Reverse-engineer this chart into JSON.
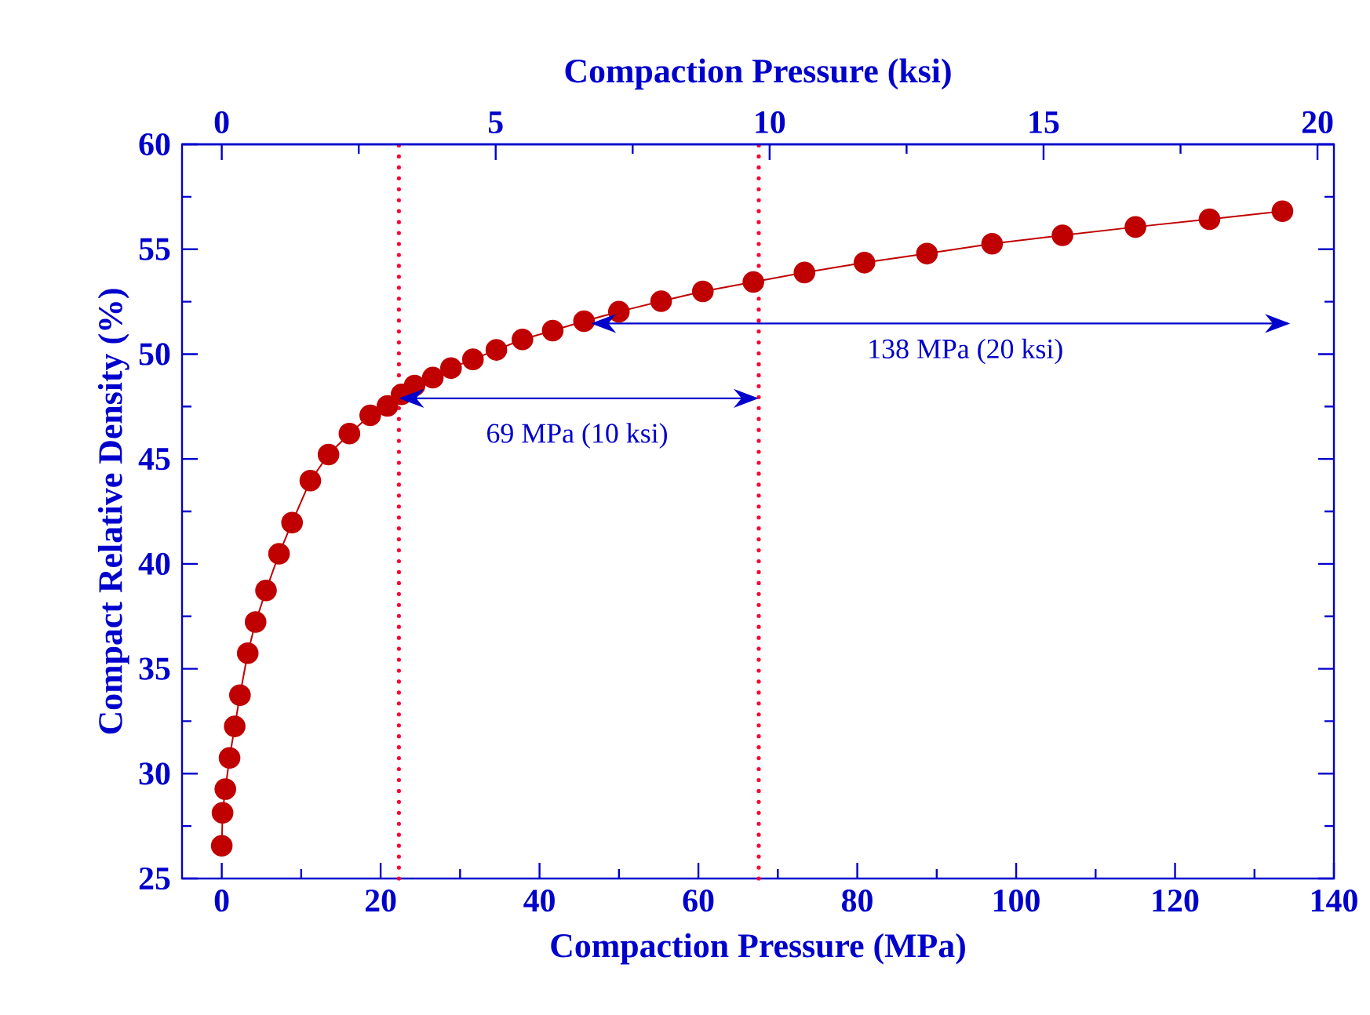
{
  "chart_data": {
    "type": "line",
    "xlabel": "Compaction Pressure (MPa)",
    "x2label": "Compaction Pressure (ksi)",
    "ylabel": "Compact Relative Density (%)",
    "xlim": [
      -5,
      140
    ],
    "xticks": [
      0,
      20,
      40,
      60,
      80,
      100,
      120,
      140
    ],
    "x2lim": [
      -0.725,
      20.3
    ],
    "x2ticks": [
      0,
      5,
      10,
      15,
      20
    ],
    "ylim": [
      25,
      60
    ],
    "yticks": [
      25,
      30,
      35,
      40,
      45,
      50,
      55,
      60
    ],
    "marker": "circle",
    "line_style": "solid",
    "grid": false,
    "series": [
      {
        "color": "#c00000",
        "x": [
          0,
          0.1,
          0.45,
          0.98,
          1.63,
          2.29,
          3.27,
          4.26,
          5.57,
          7.21,
          8.85,
          11.15,
          13.44,
          16.07,
          18.69,
          20.86,
          22.63,
          24.27,
          26.57,
          28.86,
          31.62,
          34.57,
          37.85,
          41.66,
          45.6,
          49.99,
          55.31,
          60.56,
          66.92,
          73.35,
          80.9,
          88.77,
          96.97,
          105.83,
          115.02,
          124.34,
          133.52
        ],
        "values": [
          26.56,
          28.13,
          29.26,
          30.75,
          32.25,
          33.74,
          35.74,
          37.23,
          38.73,
          40.48,
          41.97,
          43.97,
          45.21,
          46.21,
          47.08,
          47.53,
          48.08,
          48.5,
          48.88,
          49.33,
          49.75,
          50.2,
          50.7,
          51.12,
          51.57,
          52.02,
          52.52,
          52.99,
          53.44,
          53.89,
          54.36,
          54.79,
          55.26,
          55.66,
          56.06,
          56.43,
          56.81
        ]
      }
    ],
    "ref_lines": [
      {
        "axis": "x",
        "value": 22.3,
        "color": "#ff0033",
        "line_style": "dotted"
      },
      {
        "axis": "x",
        "value": 67.6,
        "color": "#ff0033",
        "line_style": "dotted"
      }
    ],
    "annotations": [
      "69 MPa (10 ksi)",
      "138 MPa (20 ksi)"
    ]
  }
}
